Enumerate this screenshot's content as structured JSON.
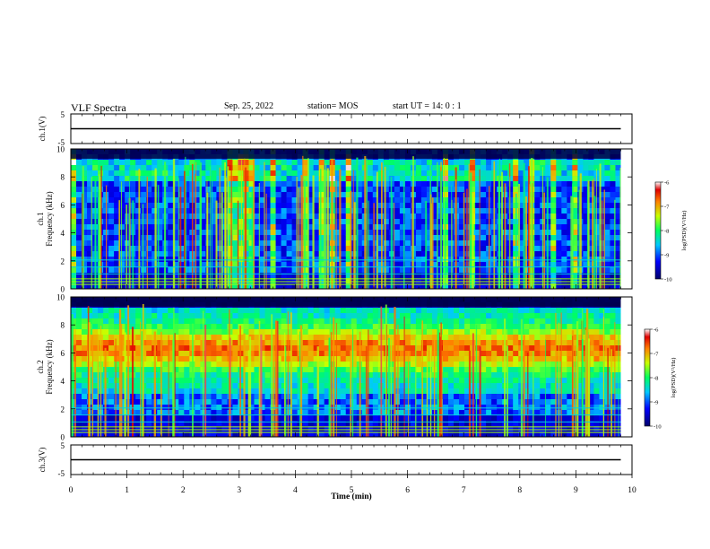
{
  "header": {
    "title": "VLF Spectra",
    "date": "Sep. 25, 2022",
    "station": "station= MOS",
    "start_time": "start  UT =   14: 0  : 1"
  },
  "chart_data": [
    {
      "type": "line",
      "name": "ch1-waveform",
      "ylabel": "ch.1(V)",
      "ylim": [
        -5,
        5
      ],
      "yticks": [
        "5",
        "-5"
      ],
      "xlim": [
        0,
        10
      ],
      "x": [
        0,
        9.8
      ],
      "y": [
        0,
        0
      ]
    },
    {
      "type": "heatmap",
      "name": "ch1-spectrogram",
      "ylabel": "ch.1\nFrequency (kHz)",
      "ylabel_line1": "ch.1",
      "ylabel_line2": "Frequency (kHz)",
      "ylim": [
        0,
        10
      ],
      "yticks": [
        "0",
        "2",
        "4",
        "6",
        "8",
        "10"
      ],
      "xlim": [
        0,
        9.8
      ],
      "colorbar": {
        "label": "log(PSD)(V²/Hz)",
        "range": [
          -10,
          -6
        ],
        "ticks": [
          "-6",
          "-7",
          "-8",
          "-9",
          "-10"
        ]
      }
    },
    {
      "type": "heatmap",
      "name": "ch2-spectrogram",
      "ylabel": "ch.2\nFrequency (kHz)",
      "ylabel_line1": "ch.2",
      "ylabel_line2": "Frequency (kHz)",
      "ylim": [
        0,
        10
      ],
      "yticks": [
        "0",
        "2",
        "4",
        "6",
        "8",
        "10"
      ],
      "xlim": [
        0,
        9.8
      ],
      "colorbar": {
        "label": "log(PSD)(V²/Hz)",
        "range": [
          -10,
          -6
        ],
        "ticks": [
          "-6",
          "-7",
          "-8",
          "-9",
          "-10"
        ]
      }
    },
    {
      "type": "line",
      "name": "ch3-waveform",
      "ylabel": "ch.3(V)",
      "ylim": [
        -5,
        5
      ],
      "yticks": [
        "5",
        "-5"
      ],
      "xlim": [
        0,
        10
      ],
      "x": [
        0,
        9.8
      ],
      "y": [
        0,
        0
      ]
    }
  ],
  "xaxis": {
    "label": "Time  (min)",
    "range": [
      0,
      10
    ],
    "ticks": [
      "0",
      "1",
      "2",
      "3",
      "4",
      "5",
      "6",
      "7",
      "8",
      "9",
      "10"
    ]
  }
}
